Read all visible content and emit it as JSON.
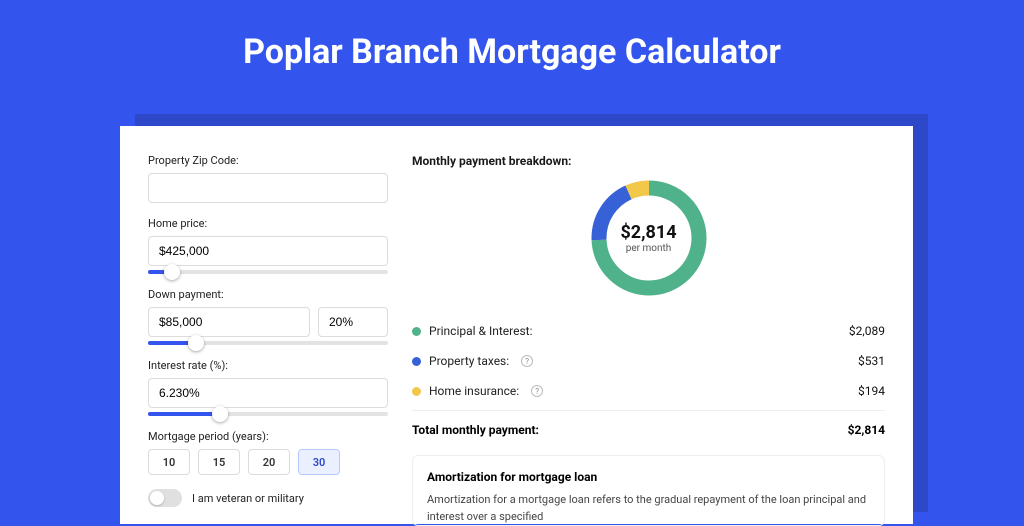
{
  "colors": {
    "page_bg": "#3355ee",
    "shadow": "#2d48c8",
    "card_bg": "#ffffff",
    "border": "#dcdcdc",
    "text": "#1a1a1a",
    "muted": "#555555",
    "slider_track": "#e3e3e3",
    "slider_fill": "#3355ee",
    "period_active_bg": "#eaf0ff",
    "period_active_border": "#b8c9ff"
  },
  "title": "Poplar Branch Mortgage Calculator",
  "form": {
    "zip": {
      "label": "Property Zip Code:",
      "value": ""
    },
    "price": {
      "label": "Home price:",
      "value": "$425,000",
      "slider_pct": 10
    },
    "down": {
      "label": "Down payment:",
      "amount": "$85,000",
      "pct": "20%",
      "slider_pct": 20
    },
    "rate": {
      "label": "Interest rate (%):",
      "value": "6.230%",
      "slider_pct": 30
    },
    "period": {
      "label": "Mortgage period (years):",
      "options": [
        "10",
        "15",
        "20",
        "30"
      ],
      "active_index": 3
    },
    "veteran": {
      "label": "I am veteran or military",
      "on": false
    }
  },
  "breakdown": {
    "title": "Monthly payment breakdown:",
    "donut": {
      "amount": "$2,814",
      "sub": "per month",
      "thickness": 15,
      "radius": 50,
      "slices": [
        {
          "key": "pi",
          "pct": 74.25,
          "color": "#4fb28a"
        },
        {
          "key": "tax",
          "pct": 18.87,
          "color": "#3761d6"
        },
        {
          "key": "ins",
          "pct": 6.88,
          "color": "#f2c84b"
        }
      ]
    },
    "rows": [
      {
        "dot": "#4fb28a",
        "label": "Principal & Interest:",
        "info": false,
        "value": "$2,089"
      },
      {
        "dot": "#3761d6",
        "label": "Property taxes:",
        "info": true,
        "value": "$531"
      },
      {
        "dot": "#f2c84b",
        "label": "Home insurance:",
        "info": true,
        "value": "$194"
      }
    ],
    "total_label": "Total monthly payment:",
    "total_value": "$2,814"
  },
  "amort": {
    "title": "Amortization for mortgage loan",
    "text": "Amortization for a mortgage loan refers to the gradual repayment of the loan principal and interest over a specified"
  }
}
